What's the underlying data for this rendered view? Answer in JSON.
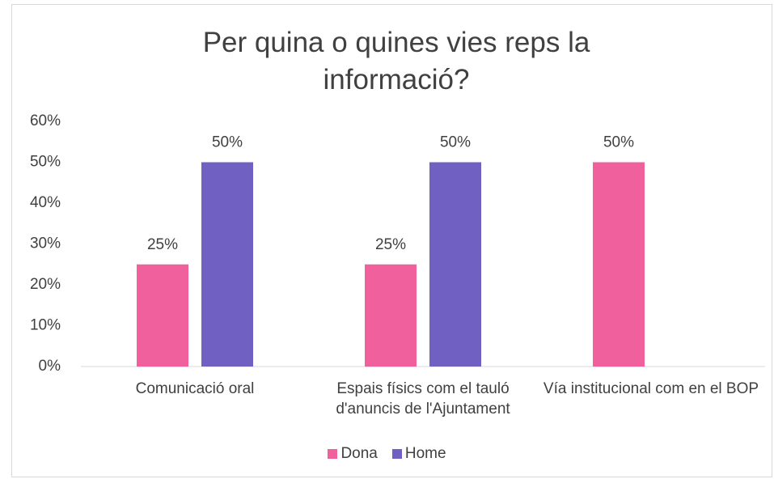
{
  "chart_data": {
    "type": "bar",
    "title": "Per quina o quines vies reps la informació?",
    "categories": [
      "Comunicació oral",
      "Espais físics com el tauló d'anuncis de l'Ajuntament",
      "Vía institucional com en el BOP"
    ],
    "series": [
      {
        "name": "Dona",
        "color": "#f0609c",
        "values": [
          25,
          25,
          50
        ],
        "value_labels": [
          "25%",
          "25%",
          "50%"
        ]
      },
      {
        "name": "Home",
        "color": "#7060c2",
        "values": [
          50,
          50,
          null
        ],
        "value_labels": [
          "50%",
          "50%",
          null
        ]
      }
    ],
    "ylim": [
      0,
      60
    ],
    "yticks": [
      {
        "value": 0,
        "label": "0%"
      },
      {
        "value": 10,
        "label": "10%"
      },
      {
        "value": 20,
        "label": "20%"
      },
      {
        "value": 30,
        "label": "30%"
      },
      {
        "value": 40,
        "label": "40%"
      },
      {
        "value": 50,
        "label": "50%"
      },
      {
        "value": 60,
        "label": "60%"
      }
    ],
    "legend": "bottom"
  }
}
